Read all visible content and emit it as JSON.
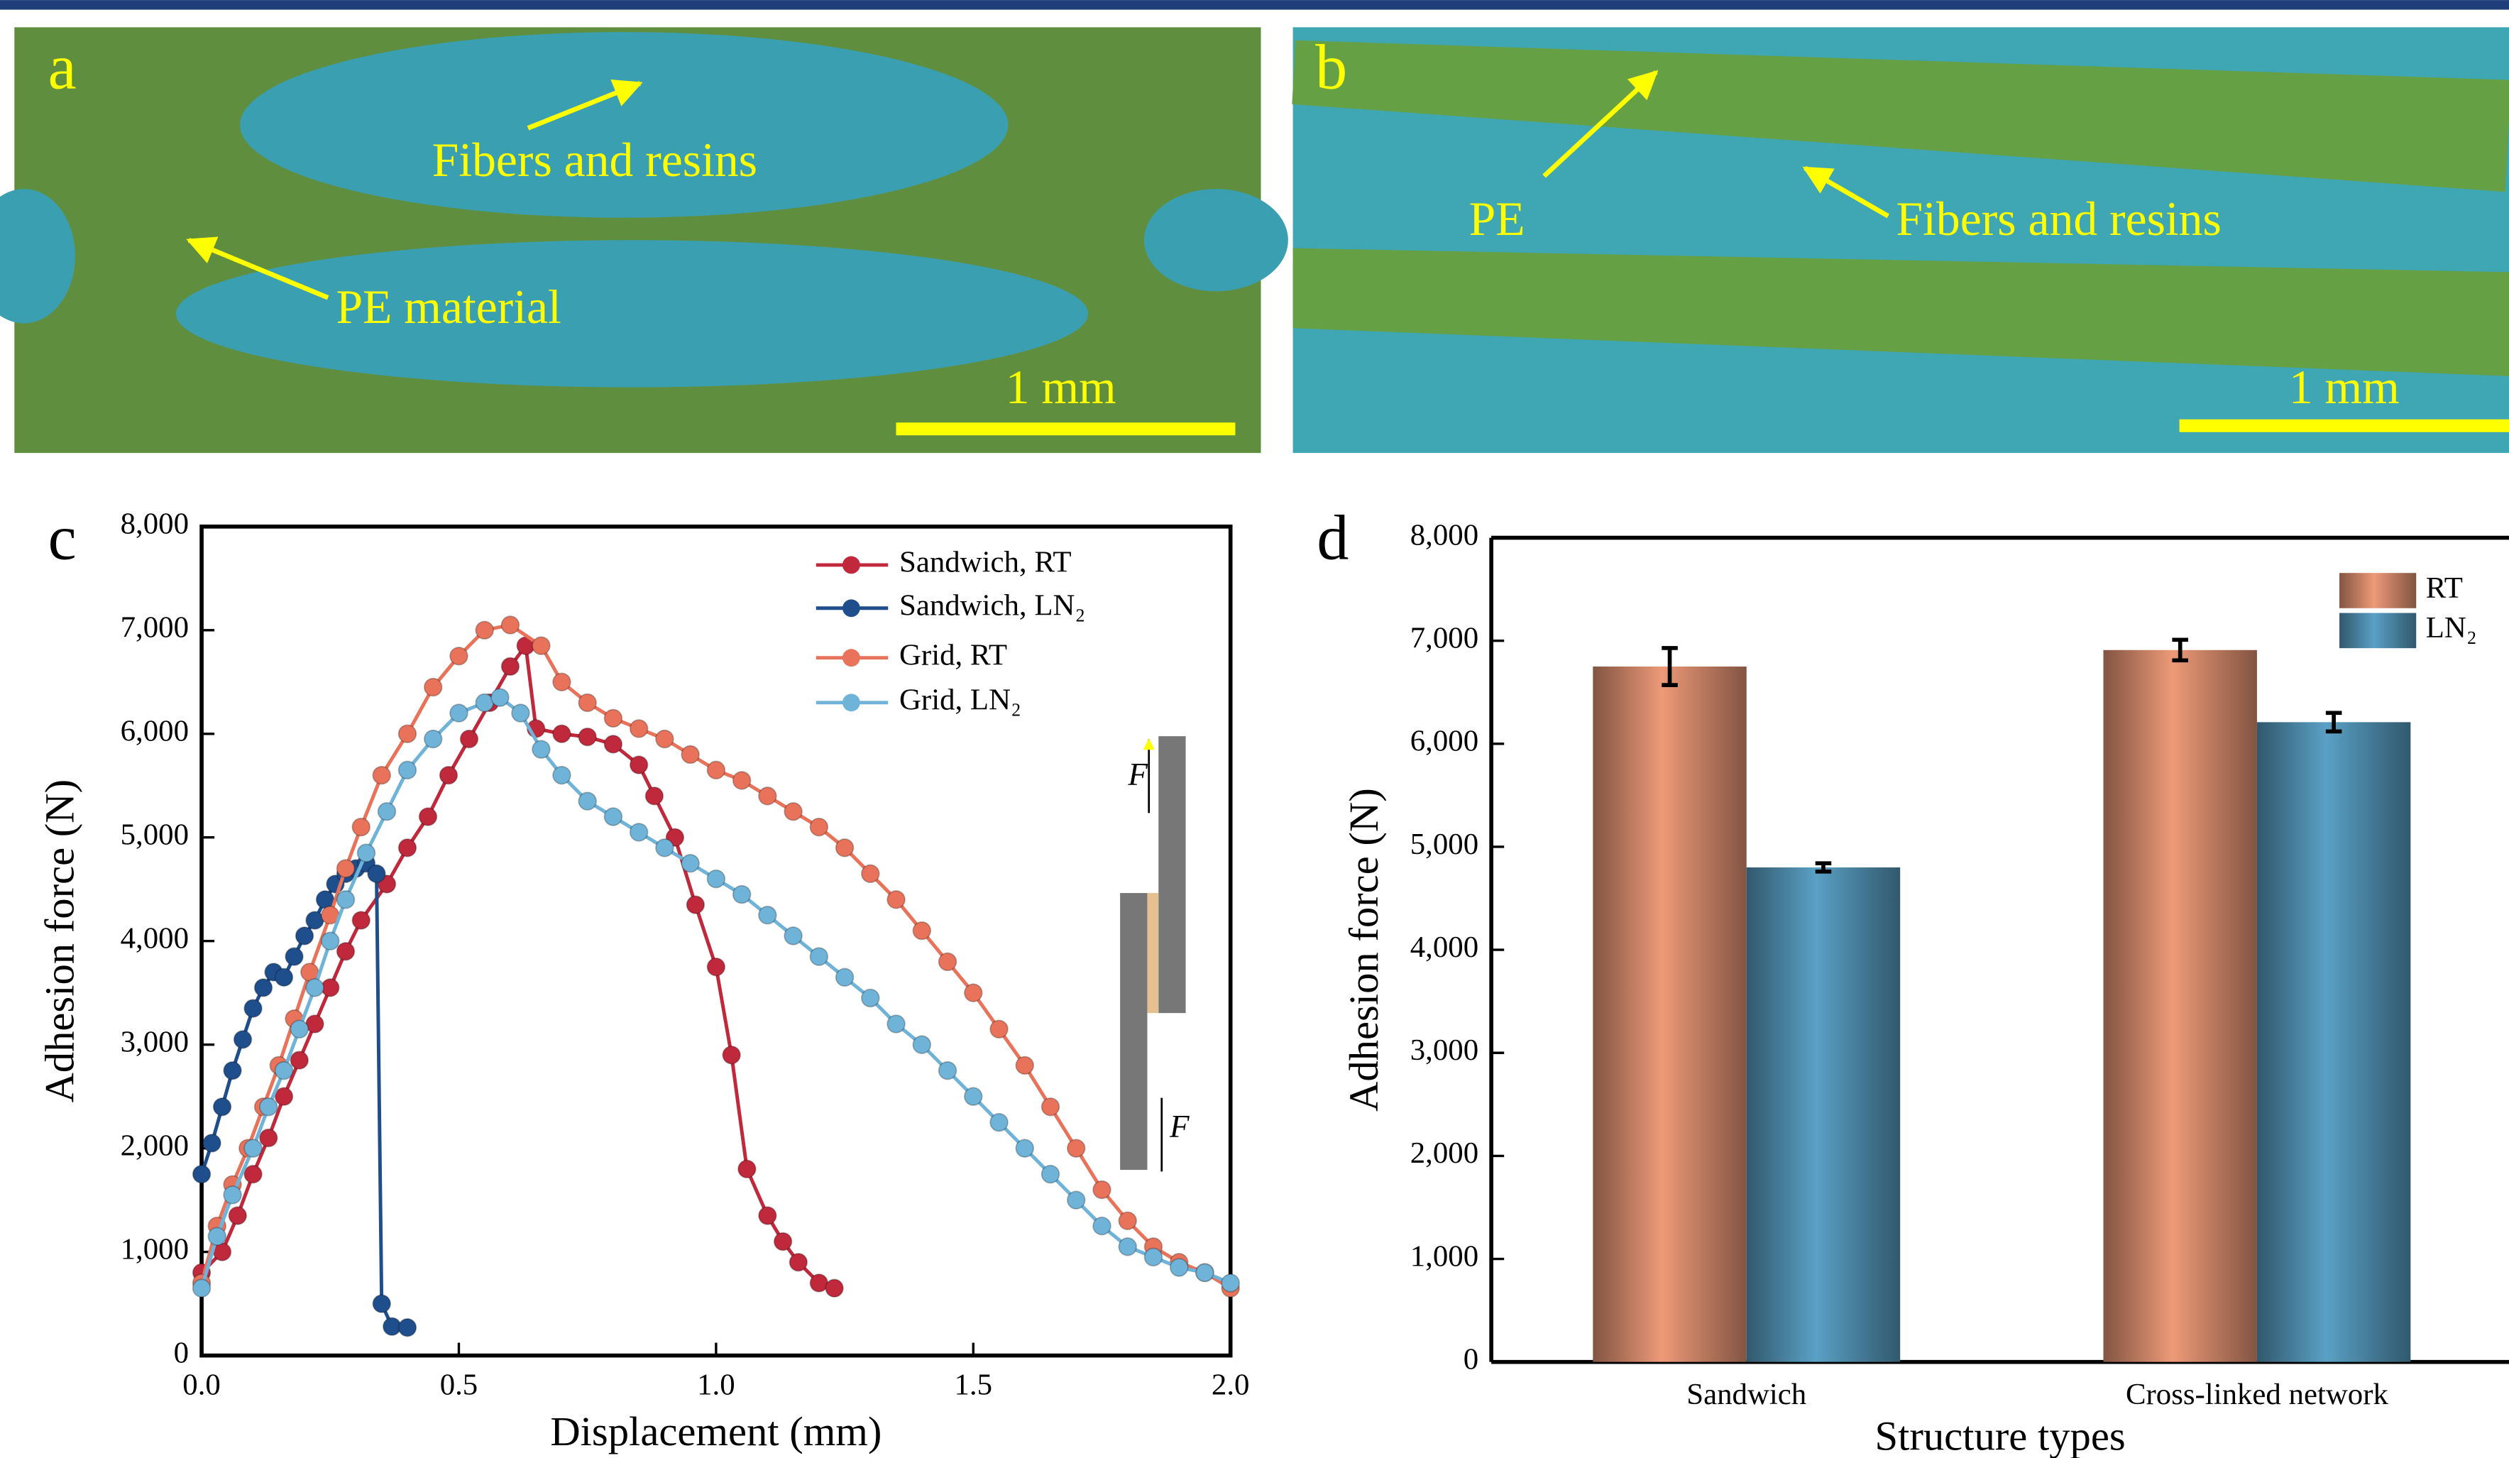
{
  "panels": [
    {
      "label": "a",
      "annotations": [
        "Fibers and resins",
        "PE material"
      ],
      "scale_bar": "1 mm"
    },
    {
      "label": "b",
      "annotations": [
        "PE",
        "Fibers and resins"
      ],
      "scale_bar": "1 mm"
    }
  ],
  "chart_data": [
    {
      "type": "line",
      "label": "c",
      "x_label": "Displacement (mm)",
      "y_label": "Adhesion force (N)",
      "xlim": [
        0,
        2
      ],
      "ylim": [
        0,
        8000
      ],
      "xticks": [
        {
          "value": 0,
          "label": "0.0"
        },
        0.5,
        {
          "value": 1,
          "label": "1.0"
        },
        1.5,
        {
          "value": 2,
          "label": "2.0"
        }
      ],
      "yticks": [
        0,
        {
          "value": 1000,
          "label": "1,000"
        },
        {
          "value": 2000,
          "label": "2,000"
        },
        {
          "value": 3000,
          "label": "3,000"
        },
        {
          "value": 4000,
          "label": "4,000"
        },
        {
          "value": 5000,
          "label": "5,000"
        },
        {
          "value": 6000,
          "label": "6,000"
        },
        {
          "value": 7000,
          "label": "7,000"
        },
        {
          "value": 8000,
          "label": "8,000"
        }
      ],
      "legend": "upper right",
      "inset_labels": [
        "F",
        "F"
      ],
      "series": [
        {
          "name": "Sandwich, RT",
          "color": "#c0283c",
          "x": [
            0,
            0.04,
            0.07,
            0.1,
            0.13,
            0.16,
            0.19,
            0.22,
            0.25,
            0.28,
            0.31,
            0.36,
            0.4,
            0.44,
            0.48,
            0.52,
            0.56,
            0.6,
            0.63,
            0.65,
            0.7,
            0.75,
            0.8,
            0.85,
            0.88,
            0.92,
            0.96,
            1.0,
            1.03,
            1.06,
            1.1,
            1.13,
            1.16,
            1.2,
            1.23
          ],
          "values": [
            800,
            1000,
            1350,
            1750,
            2100,
            2500,
            2850,
            3200,
            3550,
            3900,
            4200,
            4550,
            4900,
            5200,
            5600,
            5950,
            6300,
            6650,
            6850,
            6050,
            6000,
            5970,
            5900,
            5700,
            5400,
            5000,
            4350,
            3750,
            2900,
            1800,
            1350,
            1100,
            900,
            700,
            650
          ]
        },
        {
          "name": "Sandwich, LN₂",
          "color": "#1f4e8c",
          "x": [
            0,
            0.02,
            0.04,
            0.06,
            0.08,
            0.1,
            0.12,
            0.14,
            0.16,
            0.18,
            0.2,
            0.22,
            0.24,
            0.26,
            0.28,
            0.3,
            0.32,
            0.34,
            0.35,
            0.37,
            0.4
          ],
          "values": [
            1750,
            2050,
            2400,
            2750,
            3050,
            3350,
            3550,
            3700,
            3650,
            3850,
            4050,
            4200,
            4400,
            4550,
            4650,
            4700,
            4750,
            4650,
            500,
            280,
            270
          ]
        },
        {
          "name": "Grid, RT",
          "color": "#e8735a",
          "x": [
            0,
            0.03,
            0.06,
            0.09,
            0.12,
            0.15,
            0.18,
            0.21,
            0.25,
            0.28,
            0.31,
            0.35,
            0.4,
            0.45,
            0.5,
            0.55,
            0.6,
            0.66,
            0.7,
            0.75,
            0.8,
            0.85,
            0.9,
            0.95,
            1.0,
            1.05,
            1.1,
            1.15,
            1.2,
            1.25,
            1.3,
            1.35,
            1.4,
            1.45,
            1.5,
            1.55,
            1.6,
            1.65,
            1.7,
            1.75,
            1.8,
            1.85,
            1.9,
            1.95,
            2.0
          ],
          "values": [
            700,
            1250,
            1650,
            2000,
            2400,
            2800,
            3250,
            3700,
            4250,
            4700,
            5100,
            5600,
            6000,
            6450,
            6750,
            7000,
            7050,
            6850,
            6500,
            6300,
            6150,
            6050,
            5950,
            5800,
            5650,
            5550,
            5400,
            5250,
            5100,
            4900,
            4650,
            4400,
            4100,
            3800,
            3500,
            3150,
            2800,
            2400,
            2000,
            1600,
            1300,
            1050,
            900,
            800,
            650
          ]
        },
        {
          "name": "Grid, LN₂",
          "color": "#6fb3d8",
          "x": [
            0,
            0.03,
            0.06,
            0.1,
            0.13,
            0.16,
            0.19,
            0.22,
            0.25,
            0.28,
            0.32,
            0.36,
            0.4,
            0.45,
            0.5,
            0.55,
            0.58,
            0.62,
            0.66,
            0.7,
            0.75,
            0.8,
            0.85,
            0.9,
            0.95,
            1.0,
            1.05,
            1.1,
            1.15,
            1.2,
            1.25,
            1.3,
            1.35,
            1.4,
            1.45,
            1.5,
            1.55,
            1.6,
            1.65,
            1.7,
            1.75,
            1.8,
            1.85,
            1.9,
            1.95,
            2.0
          ],
          "values": [
            650,
            1150,
            1550,
            2000,
            2400,
            2750,
            3150,
            3550,
            4000,
            4400,
            4850,
            5250,
            5650,
            5950,
            6200,
            6300,
            6350,
            6200,
            5850,
            5600,
            5350,
            5200,
            5050,
            4900,
            4750,
            4600,
            4450,
            4250,
            4050,
            3850,
            3650,
            3450,
            3200,
            3000,
            2750,
            2500,
            2250,
            2000,
            1750,
            1500,
            1250,
            1050,
            950,
            850,
            800,
            700
          ]
        }
      ]
    },
    {
      "type": "bar",
      "label": "d",
      "x_label": "Structure types",
      "y_label": "Adhesion force (N)",
      "categories": [
        "Sandwich",
        "Cross-linked network"
      ],
      "ylim": [
        0,
        8000
      ],
      "yticks": [
        0,
        {
          "value": 1000,
          "label": "1,000"
        },
        {
          "value": 2000,
          "label": "2,000"
        },
        {
          "value": 3000,
          "label": "3,000"
        },
        {
          "value": 4000,
          "label": "4,000"
        },
        {
          "value": 5000,
          "label": "5,000"
        },
        {
          "value": 6000,
          "label": "6,000"
        },
        {
          "value": 7000,
          "label": "7,000"
        },
        {
          "value": 8000,
          "label": "8,000"
        }
      ],
      "legend": "upper right",
      "series": [
        {
          "name": "RT",
          "color": "#ee9a78",
          "values": [
            6750,
            6910
          ],
          "errors": [
            180,
            100
          ]
        },
        {
          "name": "LN₂",
          "color": "#5aa1c6",
          "values": [
            4800,
            6210
          ],
          "errors": [
            40,
            90
          ]
        }
      ]
    }
  ]
}
